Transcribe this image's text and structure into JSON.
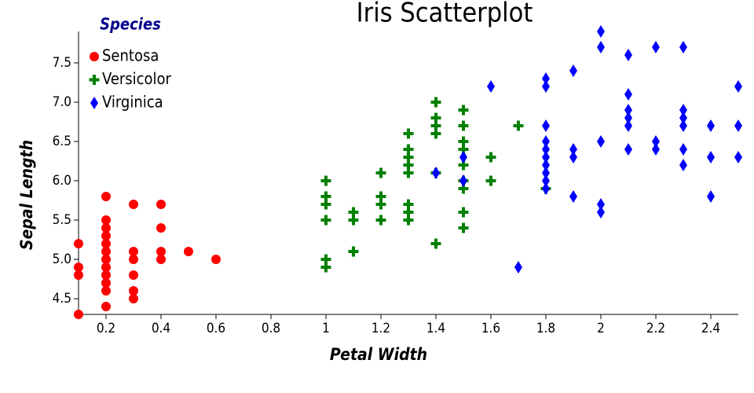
{
  "chart_data": {
    "type": "scatter",
    "title": "Iris Scatterplot",
    "x_label": "Petal Width",
    "y_label": "Sepal Length",
    "legend_title": "Species",
    "legend_position": "top-left",
    "xlim": [
      0.1,
      2.5
    ],
    "ylim": [
      4.3,
      7.9
    ],
    "xticks": [
      0.2,
      0.4,
      0.6,
      0.8,
      1.0,
      1.2,
      1.4,
      1.6,
      1.8,
      2.0,
      2.2,
      2.4
    ],
    "yticks": [
      4.5,
      {
        "value": 5,
        "label": "5.0"
      },
      5.5,
      {
        "value": 6,
        "label": "6.0"
      },
      6.5,
      {
        "value": 7,
        "label": "7.0"
      },
      7.5
    ],
    "series": [
      {
        "name": "Sentosa",
        "color": "#ff0000",
        "marker": "circle",
        "x": [
          0.1,
          0.1,
          0.1,
          0.1,
          0.2,
          0.2,
          0.2,
          0.2,
          0.2,
          0.2,
          0.2,
          0.2,
          0.2,
          0.2,
          0.2,
          0.2,
          0.3,
          0.3,
          0.3,
          0.3,
          0.3,
          0.3,
          0.4,
          0.4,
          0.4,
          0.4,
          0.5,
          0.6
        ],
        "values": [
          5.2,
          4.9,
          4.8,
          4.3,
          5.8,
          5.5,
          5.4,
          5.3,
          5.2,
          5.1,
          5.0,
          4.9,
          4.8,
          4.7,
          4.6,
          4.4,
          5.7,
          5.1,
          5.0,
          4.8,
          4.6,
          4.5,
          5.7,
          5.4,
          5.1,
          5.0,
          5.1,
          5.0
        ]
      },
      {
        "name": "Versicolor",
        "color": "#008000",
        "marker": "plus",
        "x": [
          1.0,
          1.0,
          1.0,
          1.0,
          1.0,
          1.0,
          1.1,
          1.1,
          1.1,
          1.2,
          1.2,
          1.2,
          1.2,
          1.3,
          1.3,
          1.3,
          1.3,
          1.3,
          1.3,
          1.3,
          1.3,
          1.4,
          1.4,
          1.4,
          1.4,
          1.4,
          1.4,
          1.5,
          1.5,
          1.5,
          1.5,
          1.5,
          1.5,
          1.5,
          1.5,
          1.5,
          1.6,
          1.6,
          1.7,
          1.8
        ],
        "values": [
          6.0,
          5.8,
          5.7,
          5.5,
          5.0,
          4.9,
          5.6,
          5.5,
          5.1,
          6.1,
          5.8,
          5.7,
          5.5,
          6.6,
          6.4,
          6.3,
          6.2,
          6.1,
          5.7,
          5.6,
          5.5,
          7.0,
          6.8,
          6.7,
          6.6,
          6.1,
          5.2,
          6.9,
          6.7,
          6.5,
          6.4,
          6.2,
          6.0,
          5.9,
          5.6,
          5.4,
          6.3,
          6.0,
          6.7,
          5.9
        ]
      },
      {
        "name": "Virginica",
        "color": "#0000ff",
        "marker": "diamond",
        "x": [
          1.4,
          1.5,
          1.5,
          1.6,
          1.7,
          1.8,
          1.8,
          1.8,
          1.8,
          1.8,
          1.8,
          1.8,
          1.8,
          1.8,
          1.8,
          1.9,
          1.9,
          1.9,
          1.9,
          2.0,
          2.0,
          2.0,
          2.0,
          2.0,
          2.1,
          2.1,
          2.1,
          2.1,
          2.1,
          2.1,
          2.2,
          2.2,
          2.2,
          2.3,
          2.3,
          2.3,
          2.3,
          2.3,
          2.3,
          2.4,
          2.4,
          2.4,
          2.5,
          2.5,
          2.5
        ],
        "values": [
          6.1,
          6.3,
          6.0,
          7.2,
          4.9,
          7.3,
          7.2,
          6.7,
          6.5,
          6.4,
          6.3,
          6.2,
          6.1,
          6.0,
          5.9,
          7.4,
          6.4,
          6.3,
          5.8,
          7.9,
          7.7,
          6.5,
          5.7,
          5.6,
          7.6,
          7.1,
          6.9,
          6.8,
          6.7,
          6.4,
          7.7,
          6.5,
          6.4,
          7.7,
          6.9,
          6.8,
          6.7,
          6.4,
          6.2,
          6.7,
          6.3,
          5.8,
          7.2,
          6.7,
          6.3
        ]
      }
    ]
  }
}
